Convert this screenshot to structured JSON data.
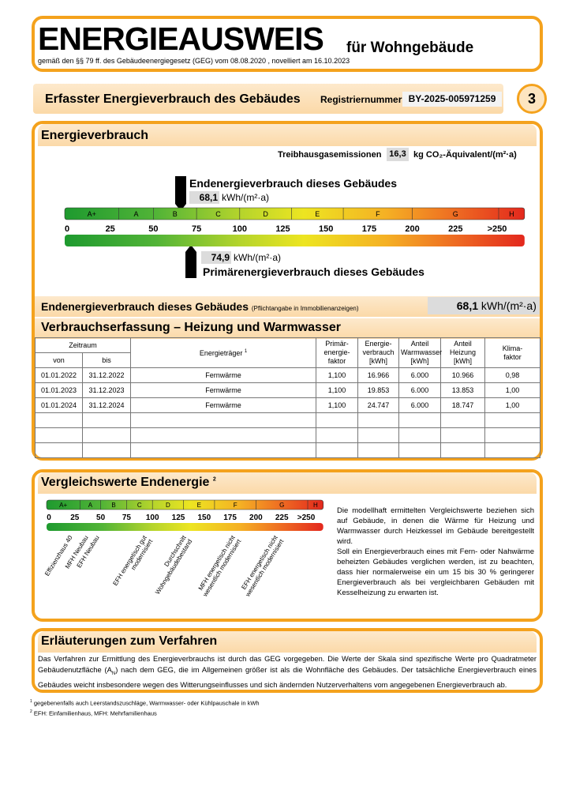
{
  "header": {
    "title": "ENERGIEAUSWEIS",
    "title_suffix": "für Wohngebäude",
    "subtitle": "gemäß den §§ 79 ff. des Gebäudeenergiegesetz (GEG) vom 08.08.2020 , novelliert am 16.10.2023"
  },
  "banner": {
    "title": "Erfasster Energieverbrauch des Gebäudes",
    "registration_label": "Registriernummer:",
    "registration_number": "BY-2025-005971259",
    "page_number": "3"
  },
  "consumption": {
    "title": "Energieverbrauch",
    "ghg_label": "Treibhausgasemissionen",
    "ghg_value": "16,3",
    "ghg_unit": "kg CO₂-Äquivalent/(m²·a)",
    "final_energy_label": "Endenergieverbrauch dieses Gebäudes",
    "final_energy_value": "68,1",
    "final_energy_unit": "kWh/(m²·a)",
    "primary_energy_value": "74,9",
    "primary_energy_unit": "kWh/(m²·a)",
    "primary_energy_label": "Primärenergieverbrauch dieses Gebäudes",
    "scale": {
      "classes": [
        "A+",
        "A",
        "B",
        "C",
        "D",
        "E",
        "F",
        "G",
        "H"
      ],
      "ticks": [
        "0",
        "25",
        "50",
        "75",
        "100",
        "125",
        "150",
        "175",
        "200",
        "225",
        ">250"
      ]
    },
    "summary": {
      "label": "Endenergieverbrauch dieses Gebäudes",
      "note": "(Pflichtangabe in Immobilienanzeigen)",
      "value": "68,1",
      "unit": "kWh/(m²·a)"
    }
  },
  "recording": {
    "title": "Verbrauchserfassung – Heizung und Warmwasser",
    "table": {
      "headers": {
        "period": "Zeitraum",
        "from": "von",
        "to": "bis",
        "carrier": "Energieträger",
        "carrier_footnote": "1",
        "primary_factor": "Primär-\nenergie-\nfaktor",
        "consumption": "Energie-\nverbrauch\n[kWh]",
        "hot_water": "Anteil\nWarmwasser\n[kWh]",
        "heating": "Anteil\nHeizung\n[kWh]",
        "climate_factor": "Klima-\nfaktor"
      },
      "rows": [
        [
          "01.01.2022",
          "31.12.2022",
          "Fernwärme",
          "1,100",
          "16.966",
          "6.000",
          "10.966",
          "0,98"
        ],
        [
          "01.01.2023",
          "31.12.2023",
          "Fernwärme",
          "1,100",
          "19.853",
          "6.000",
          "13.853",
          "1,00"
        ],
        [
          "01.01.2024",
          "31.12.2024",
          "Fernwärme",
          "1,100",
          "24.747",
          "6.000",
          "18.747",
          "1,00"
        ]
      ]
    }
  },
  "comparison": {
    "title": "Vergleichswerte Endenergie",
    "title_footnote": "2",
    "scale": {
      "classes": [
        "A+",
        "A",
        "B",
        "C",
        "D",
        "E",
        "F",
        "G",
        "H"
      ],
      "ticks": [
        "0",
        "25",
        "50",
        "75",
        "100",
        "125",
        "150",
        "175",
        "200",
        "225",
        ">250"
      ]
    },
    "reference_labels": [
      [
        "Effizienzhaus 40"
      ],
      [
        "MFH Neubau"
      ],
      [
        "EFH Neubau"
      ],
      [
        "EFH energetisch gut",
        "modernisiert"
      ],
      [
        "Durchschnitt",
        "Wohngebäudebestand"
      ],
      [
        "MFH energetisch nicht",
        "wesentlich modernisiert"
      ],
      [
        "EFH energetisch nicht",
        "wesentlich modernisiert"
      ]
    ],
    "text": "Die modellhaft ermittelten Vergleichswerte beziehen sich auf Gebäude, in denen die Wärme für Heizung und Warmwasser durch Heizkessel im Gebäude bereitgestellt wird.\nSoll ein Energieverbrauch eines mit Fern- oder Nahwärme beheizten Gebäudes verglichen werden, ist zu beachten, dass hier normalerweise ein um 15 bis 30 % geringerer Energieverbrauch als bei vergleichbaren Gebäuden mit Kesselheizung zu erwarten ist."
  },
  "explanation": {
    "title": "Erläuterungen zum Verfahren",
    "text_parts": [
      "Das Verfahren zur Ermittlung des Energieverbrauchs ist durch das GEG vorgegeben. Die Werte der Skala sind spezifische Werte pro Quadratmeter Gebäudenutzfläche (A",
      "N",
      ") nach dem GEG, die im Allgemeinen größer ist als die Wohnfläche des Gebäudes. Der tatsächliche Energieverbrauch eines Gebäudes weicht insbesondere wegen des Witterungseinflusses und sich ändernden Nutzerverhaltens vom angegebenen Energieverbrauch ab."
    ]
  },
  "footnotes": [
    {
      "mark": "1",
      "text": "gegebenenfalls auch Leerstandszuschläge, Warmwasser- oder Kühlpauschale in kWh"
    },
    {
      "mark": "2",
      "text": "EFH: Einfamilienhaus, MFH: Mehrfamilienhaus"
    }
  ]
}
